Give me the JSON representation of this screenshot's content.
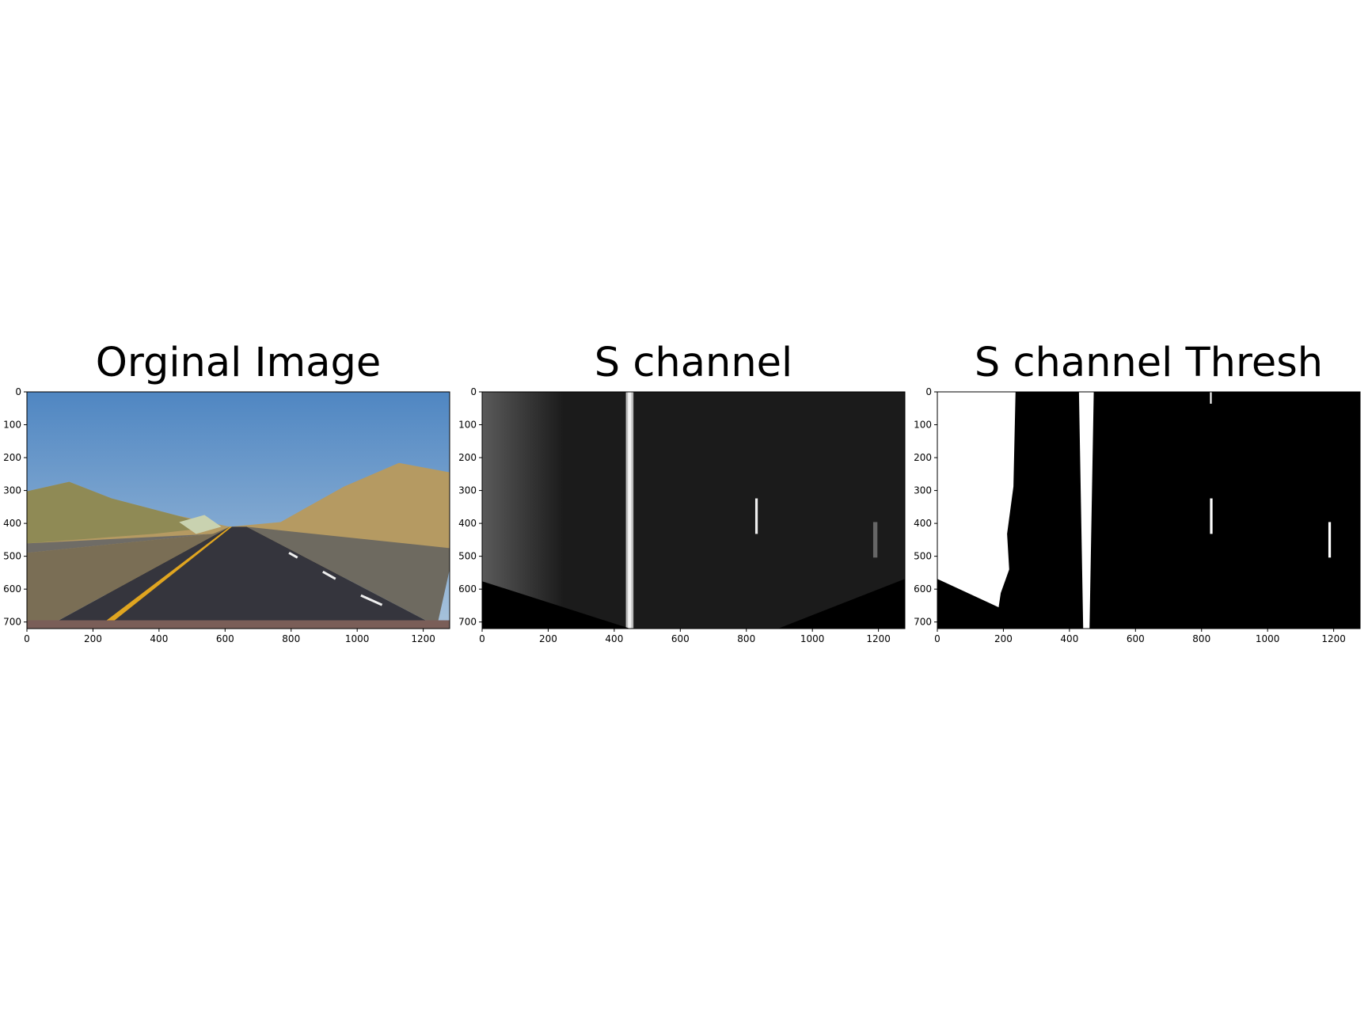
{
  "chart_data": [
    {
      "type": "image",
      "title": "Orginal Image",
      "xlim": [
        0,
        1280
      ],
      "ylim": [
        720,
        0
      ],
      "xticks": [
        0,
        200,
        400,
        600,
        800,
        1000,
        1200
      ],
      "yticks": [
        0,
        100,
        200,
        300,
        400,
        500,
        600,
        700
      ]
    },
    {
      "type": "image",
      "title": "S channel",
      "xlim": [
        0,
        1280
      ],
      "ylim": [
        720,
        0
      ],
      "xticks": [
        0,
        200,
        400,
        600,
        800,
        1000,
        1200
      ],
      "yticks": [
        0,
        100,
        200,
        300,
        400,
        500,
        600,
        700
      ]
    },
    {
      "type": "image",
      "title": "S channel Thresh",
      "xlim": [
        0,
        1280
      ],
      "ylim": [
        720,
        0
      ],
      "xticks": [
        0,
        200,
        400,
        600,
        800,
        1000,
        1200
      ],
      "yticks": [
        0,
        100,
        200,
        300,
        400,
        500,
        600,
        700
      ]
    }
  ]
}
